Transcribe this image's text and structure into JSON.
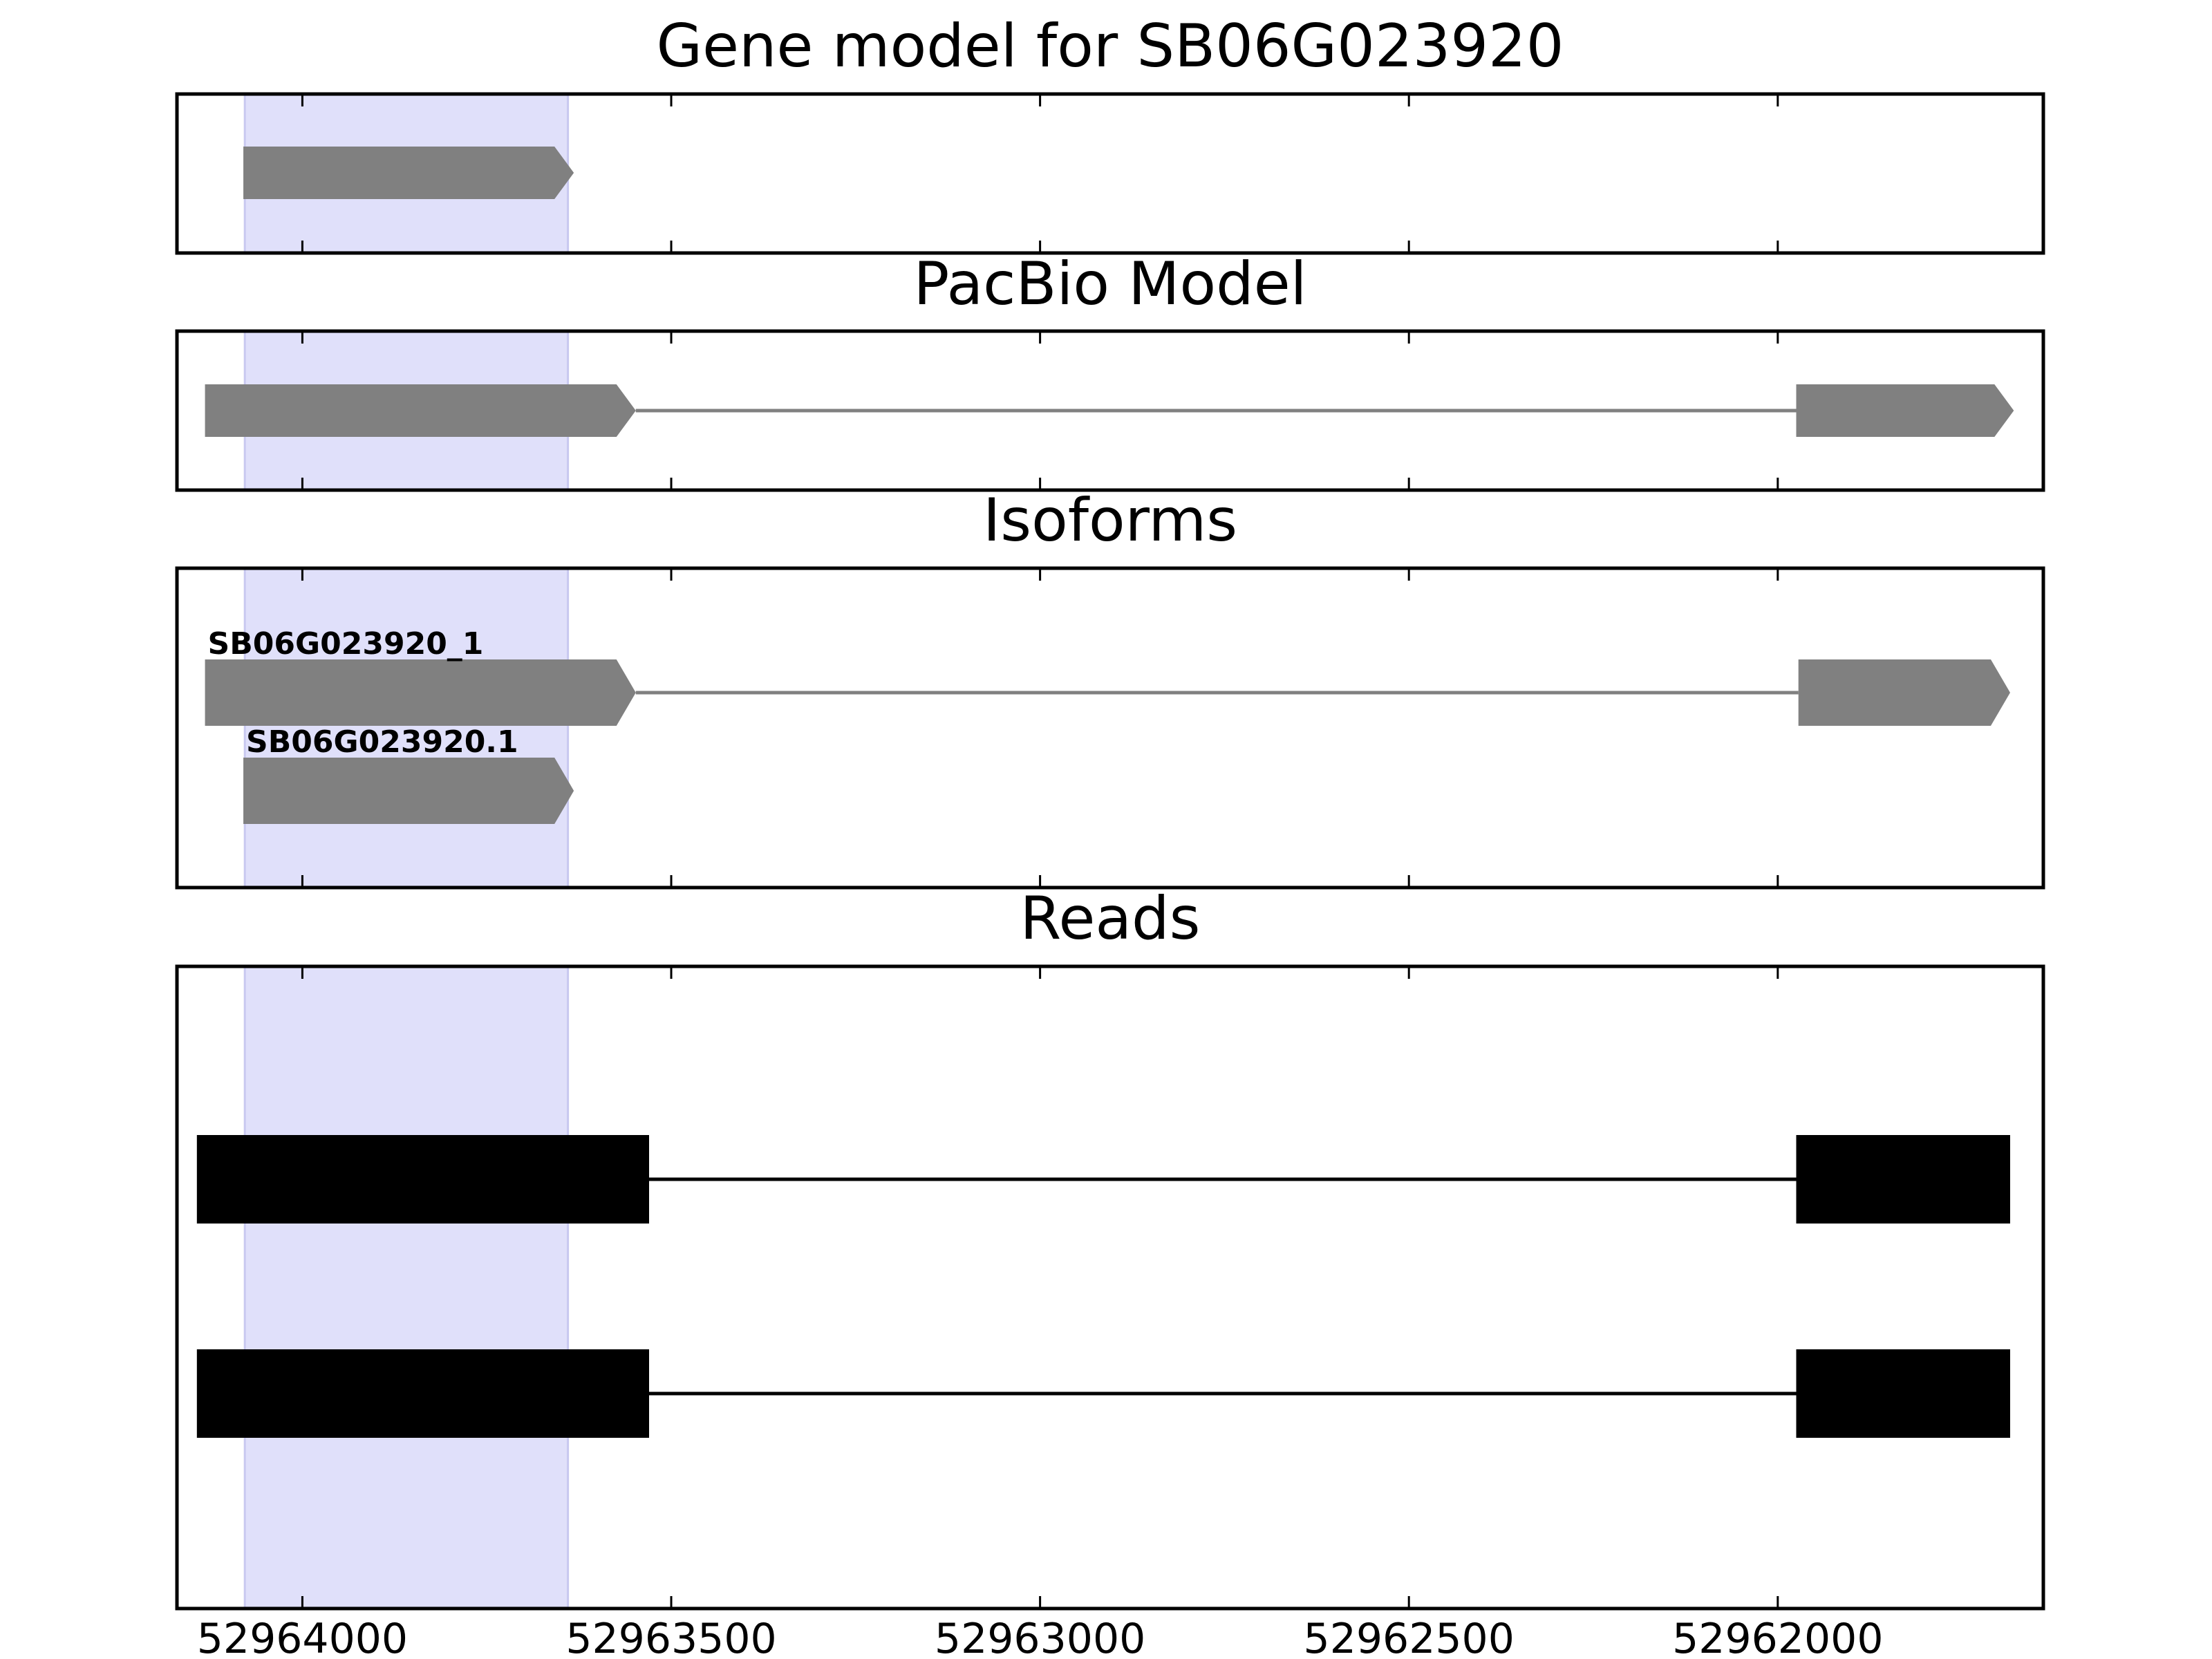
{
  "chart_data": {
    "type": "gene-track",
    "x_axis": {
      "range": [
        52964170,
        52961640
      ],
      "reversed": true,
      "ticks": [
        {
          "value": 52964000,
          "label": "52964000"
        },
        {
          "value": 52963500,
          "label": "52963500"
        },
        {
          "value": 52963000,
          "label": "52963000"
        },
        {
          "value": 52962500,
          "label": "52962500"
        },
        {
          "value": 52962000,
          "label": "52962000"
        }
      ]
    },
    "highlight_region": {
      "start": 52964078,
      "end": 52963640,
      "color": "#e0e0fa"
    },
    "panels": [
      {
        "id": "gene-model",
        "title": "Gene model for SB06G023920",
        "tracks": [
          {
            "label": "",
            "exons": [
              [
                52964080,
                52963632
              ]
            ],
            "arrow": true,
            "color": "#808080"
          }
        ]
      },
      {
        "id": "pacbio-model",
        "title": "PacBio Model",
        "tracks": [
          {
            "label": "",
            "exons": [
              [
                52964132,
                52963548
              ],
              [
                52961975,
                52961680
              ]
            ],
            "arrow": true,
            "color": "#808080"
          }
        ]
      },
      {
        "id": "isoforms",
        "title": "Isoforms",
        "tracks": [
          {
            "label": "SB06G023920_1",
            "exons": [
              [
                52964132,
                52963548
              ],
              [
                52961972,
                52961685
              ]
            ],
            "arrow": true,
            "color": "#808080"
          },
          {
            "label": "SB06G023920.1",
            "exons": [
              [
                52964080,
                52963632
              ]
            ],
            "arrow": true,
            "color": "#808080"
          }
        ]
      },
      {
        "id": "reads",
        "title": "Reads",
        "tracks": [
          {
            "label": "",
            "exons": [
              [
                52964143,
                52963530
              ],
              [
                52961975,
                52961685
              ]
            ],
            "arrow": false,
            "color": "#000000"
          },
          {
            "label": "",
            "exons": [
              [
                52964143,
                52963530
              ],
              [
                52961975,
                52961685
              ]
            ],
            "arrow": false,
            "color": "#000000"
          }
        ]
      }
    ]
  }
}
